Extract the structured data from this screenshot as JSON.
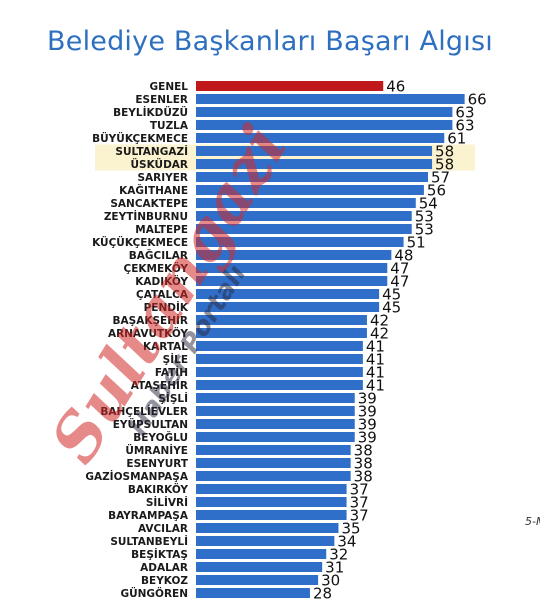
{
  "chart_data": {
    "type": "bar",
    "orientation": "horizontal",
    "title": "Belediye Başkanları Başarı Algısı",
    "categories": [
      "GENEL",
      "ESENLER",
      "BEYLİKDÜZÜ",
      "TUZLA",
      "BÜYÜKÇEKMECE",
      "SULTANGAZİ",
      "ÜSKÜDAR",
      "SARIYER",
      "KAĞITHANE",
      "SANCAKTEPE",
      "ZEYTİNBURNU",
      "MALTEPE",
      "KÜÇÜKÇEKMECE",
      "BAĞCILAR",
      "ÇEKMEKÖY",
      "KADIKÖY",
      "ÇATALCA",
      "PENDİK",
      "BAŞAKŞEHİR",
      "ARNAVUTKÖY",
      "KARTAL",
      "ŞİLE",
      "FATİH",
      "ATAŞEHİR",
      "ŞİŞLİ",
      "BAHÇELİEVLER",
      "EYÜPSULTAN",
      "BEYOĞLU",
      "ÜMRANİYE",
      "ESENYURT",
      "GAZİOSMANPAŞA",
      "BAKIRKÖY",
      "SİLİVRİ",
      "BAYRAMPAŞA",
      "AVCILAR",
      "SULTANBEYLİ",
      "BEŞİKTAŞ",
      "ADALAR",
      "BEYKOZ",
      "GÜNGÖREN"
    ],
    "values": [
      46,
      66,
      63,
      63,
      61,
      58,
      58,
      57,
      56,
      54,
      53,
      53,
      51,
      48,
      47,
      47,
      45,
      45,
      42,
      42,
      41,
      41,
      41,
      41,
      39,
      39,
      39,
      39,
      38,
      38,
      38,
      37,
      37,
      37,
      35,
      34,
      32,
      31,
      30,
      28
    ],
    "highlighted": [
      "GENEL"
    ],
    "highlight_bands": [
      "SULTANGAZİ",
      "ÜSKÜDAR"
    ],
    "colors": {
      "bar": "#2f6fc9",
      "bar_highlight": "#c0181b",
      "band": "#fbf3cf"
    },
    "data_labels": true,
    "grid": false,
    "legend": "none"
  },
  "note": "5-M",
  "watermark": {
    "main": "Sultangazi",
    "sub": "Haber Portalı"
  }
}
